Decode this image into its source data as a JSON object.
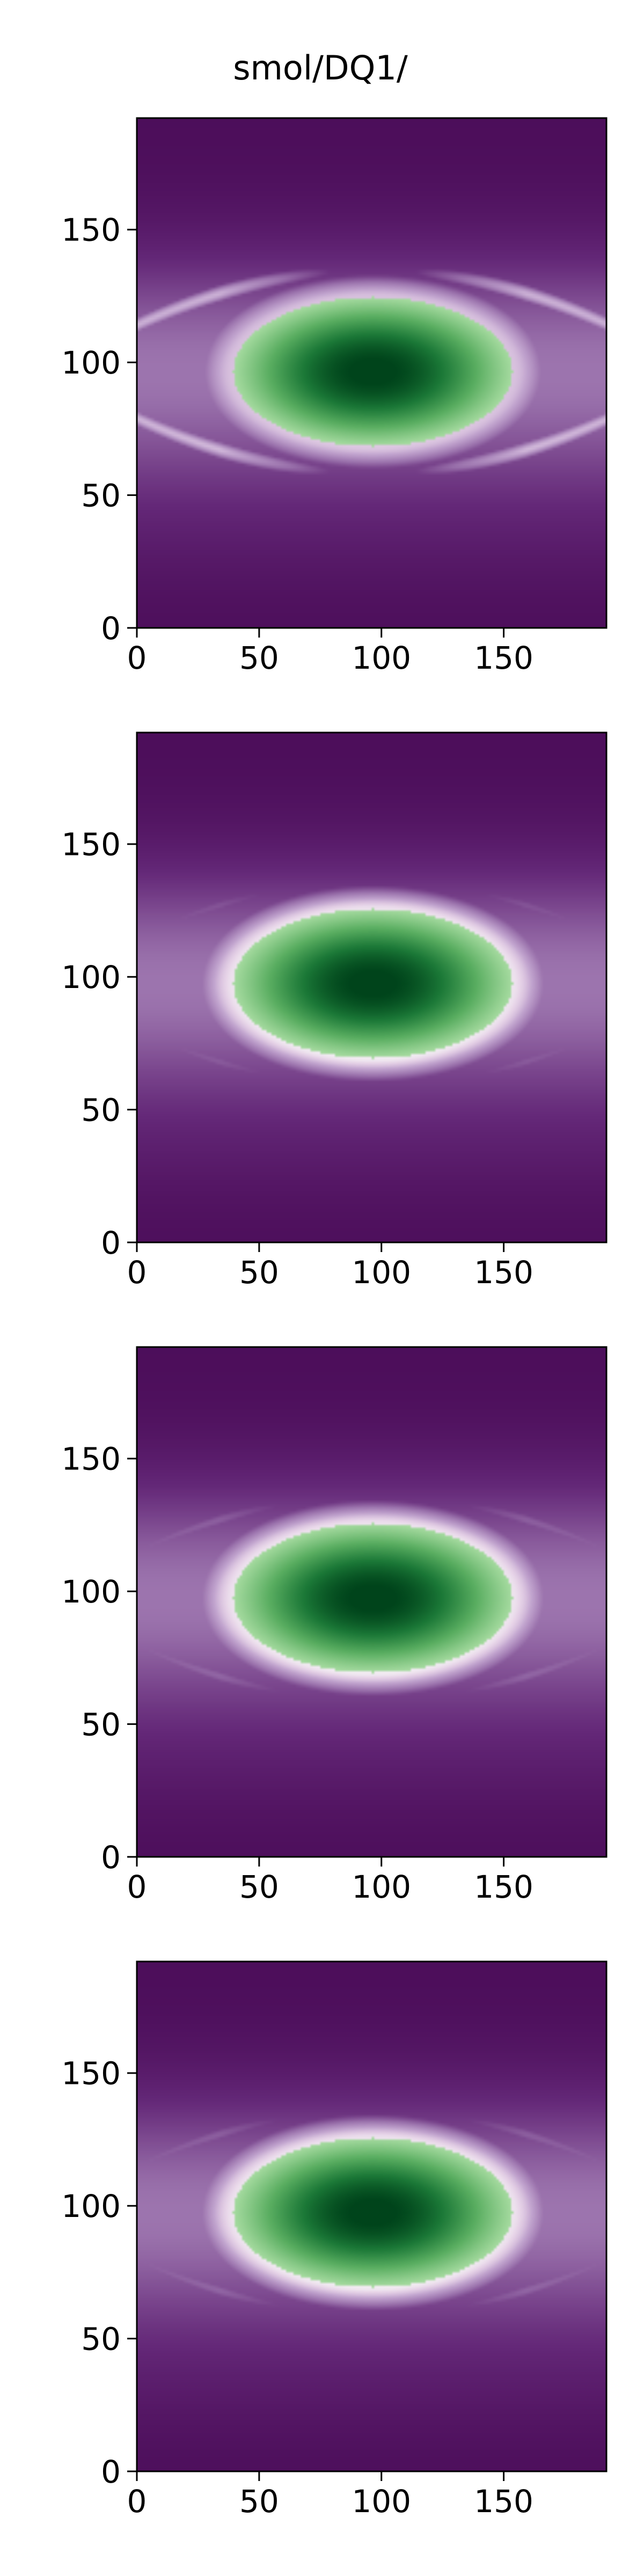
{
  "figure": {
    "title": "smol/DQ1/",
    "colors": {
      "colormap": "PRGn",
      "low": "#40004b",
      "mid": "#f7f7f7",
      "high": "#00441b"
    }
  },
  "chart_data": [
    {
      "type": "heatmap",
      "panel": 1,
      "x_range": [
        0,
        192
      ],
      "y_range": [
        0,
        192
      ],
      "x_ticks": [
        0,
        50,
        100,
        150
      ],
      "y_ticks": [
        0,
        50,
        100,
        150
      ],
      "x_tick_labels": [
        "0",
        "50",
        "100",
        "150"
      ],
      "y_tick_labels": [
        "0",
        "50",
        "100",
        "150"
      ],
      "blob_center": [
        96,
        96
      ],
      "blob_radius": [
        57,
        28
      ],
      "halo_strength": 0.85,
      "wing_strength": 0.9
    },
    {
      "type": "heatmap",
      "panel": 2,
      "x_range": [
        0,
        192
      ],
      "y_range": [
        0,
        192
      ],
      "x_ticks": [
        0,
        50,
        100,
        150
      ],
      "y_ticks": [
        0,
        50,
        100,
        150
      ],
      "x_tick_labels": [
        "0",
        "50",
        "100",
        "150"
      ],
      "y_tick_labels": [
        "0",
        "50",
        "100",
        "150"
      ],
      "blob_center": [
        96,
        97
      ],
      "blob_radius": [
        57,
        28
      ],
      "halo_strength": 0.95,
      "wing_strength": 0.4
    },
    {
      "type": "heatmap",
      "panel": 3,
      "x_range": [
        0,
        192
      ],
      "y_range": [
        0,
        192
      ],
      "x_ticks": [
        0,
        50,
        100,
        150
      ],
      "y_ticks": [
        0,
        50,
        100,
        150
      ],
      "x_tick_labels": [
        "0",
        "50",
        "100",
        "150"
      ],
      "y_tick_labels": [
        "0",
        "50",
        "100",
        "150"
      ],
      "blob_center": [
        96,
        97
      ],
      "blob_radius": [
        57,
        28
      ],
      "halo_strength": 0.95,
      "wing_strength": 0.45
    },
    {
      "type": "heatmap",
      "panel": 4,
      "x_range": [
        0,
        192
      ],
      "y_range": [
        0,
        192
      ],
      "x_ticks": [
        0,
        50,
        100,
        150
      ],
      "y_ticks": [
        0,
        50,
        100,
        150
      ],
      "x_tick_labels": [
        "0",
        "50",
        "100",
        "150"
      ],
      "y_tick_labels": [
        "0",
        "50",
        "100",
        "150"
      ],
      "blob_center": [
        96,
        97
      ],
      "blob_radius": [
        57,
        28
      ],
      "halo_strength": 0.95,
      "wing_strength": 0.45
    }
  ]
}
